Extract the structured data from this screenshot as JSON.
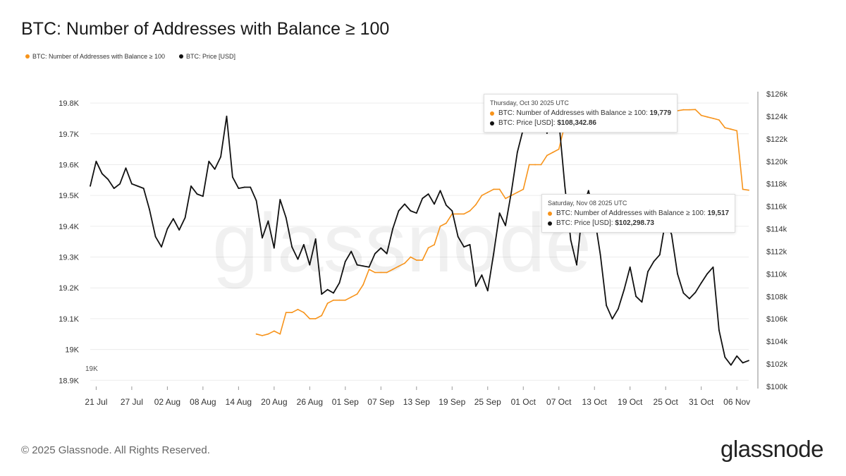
{
  "page": {
    "title": "BTC: Number of Addresses with Balance ≥ 100",
    "footer": "© 2025 Glassnode. All Rights Reserved.",
    "logo": "glassnode",
    "watermark": "glassnode"
  },
  "colors": {
    "addresses": "#f7931a",
    "price": "#111111",
    "grid": "#ececec"
  },
  "legend": [
    {
      "label": "BTC: Number of Addresses with Balance ≥ 100",
      "color": "#f7931a"
    },
    {
      "label": "BTC: Price [USD]",
      "color": "#111111"
    }
  ],
  "tooltips": [
    {
      "date": "Thursday, Oct 30 2025 UTC",
      "row1_label": "BTC: Number of Addresses with Balance ≥ 100: ",
      "row1_value": "19,779",
      "row2_label": "BTC: Price [USD]: ",
      "row2_value": "$108,342.86"
    },
    {
      "date": "Saturday, Nov 08 2025 UTC",
      "row1_label": "BTC: Number of Addresses with Balance ≥ 100: ",
      "row1_value": "19,517",
      "row2_label": "BTC: Price [USD]: ",
      "row2_value": "$102,298.73"
    }
  ],
  "chart_data": {
    "type": "line",
    "x_tick_labels": [
      "21 Jul",
      "27 Jul",
      "02 Aug",
      "08 Aug",
      "14 Aug",
      "20 Aug",
      "26 Aug",
      "01 Sep",
      "07 Sep",
      "13 Sep",
      "19 Sep",
      "25 Sep",
      "01 Oct",
      "07 Oct",
      "13 Oct",
      "19 Oct",
      "25 Oct",
      "31 Oct",
      "06 Nov"
    ],
    "x_range": [
      "2025-07-20",
      "2025-11-08"
    ],
    "y_left": {
      "ticks": [
        "18.9K",
        "19K",
        "19.1K",
        "19.2K",
        "19.3K",
        "19.4K",
        "19.5K",
        "19.6K",
        "19.7K",
        "19.8K"
      ],
      "range": [
        18.88,
        19.83
      ]
    },
    "y_right": {
      "ticks": [
        "$100k",
        "$102k",
        "$104k",
        "$106k",
        "$108k",
        "$110k",
        "$112k",
        "$114k",
        "$116k",
        "$118k",
        "$120k",
        "$122k",
        "$124k",
        "$126k"
      ],
      "range": [
        100000,
        126000
      ]
    },
    "stray_label": "19K",
    "series": [
      {
        "name": "BTC: Number of Addresses with Balance ≥ 100",
        "axis": "left",
        "x": [
          "2025-08-17",
          "2025-08-18",
          "2025-08-19",
          "2025-08-20",
          "2025-08-21",
          "2025-08-22",
          "2025-08-23",
          "2025-08-24",
          "2025-08-25",
          "2025-08-26",
          "2025-08-27",
          "2025-08-28",
          "2025-08-29",
          "2025-08-30",
          "2025-08-31",
          "2025-09-01",
          "2025-09-02",
          "2025-09-03",
          "2025-09-04",
          "2025-09-05",
          "2025-09-06",
          "2025-09-07",
          "2025-09-08",
          "2025-09-09",
          "2025-09-10",
          "2025-09-11",
          "2025-09-12",
          "2025-09-13",
          "2025-09-14",
          "2025-09-15",
          "2025-09-16",
          "2025-09-17",
          "2025-09-18",
          "2025-09-19",
          "2025-09-20",
          "2025-09-21",
          "2025-09-22",
          "2025-09-23",
          "2025-09-24",
          "2025-09-25",
          "2025-09-26",
          "2025-09-27",
          "2025-09-28",
          "2025-09-29",
          "2025-09-30",
          "2025-10-01",
          "2025-10-02",
          "2025-10-03",
          "2025-10-04",
          "2025-10-05",
          "2025-10-06",
          "2025-10-07",
          "2025-10-08",
          "2025-10-09",
          "2025-10-10",
          "2025-10-11",
          "2025-10-12",
          "2025-10-13",
          "2025-10-14",
          "2025-10-15",
          "2025-10-16",
          "2025-10-17",
          "2025-10-18",
          "2025-10-19",
          "2025-10-20",
          "2025-10-21",
          "2025-10-22",
          "2025-10-23",
          "2025-10-24",
          "2025-10-25",
          "2025-10-26",
          "2025-10-27",
          "2025-10-28",
          "2025-10-29",
          "2025-10-30",
          "2025-10-31",
          "2025-11-01",
          "2025-11-02",
          "2025-11-03",
          "2025-11-04",
          "2025-11-05",
          "2025-11-06",
          "2025-11-07",
          "2025-11-08"
        ],
        "values": [
          19.05,
          19.045,
          19.05,
          19.06,
          19.05,
          19.12,
          19.12,
          19.13,
          19.12,
          19.1,
          19.1,
          19.11,
          19.15,
          19.16,
          19.16,
          19.16,
          19.17,
          19.18,
          19.21,
          19.26,
          19.25,
          19.25,
          19.25,
          19.26,
          19.27,
          19.28,
          19.3,
          19.29,
          19.29,
          19.33,
          19.34,
          19.4,
          19.41,
          19.44,
          19.44,
          19.44,
          19.45,
          19.47,
          19.5,
          19.51,
          19.52,
          19.52,
          19.49,
          19.5,
          19.51,
          19.52,
          19.6,
          19.6,
          19.6,
          19.63,
          19.64,
          19.65,
          19.73,
          19.72,
          19.72,
          19.71,
          19.72,
          19.72,
          19.73,
          19.73,
          19.74,
          19.74,
          19.75,
          19.75,
          19.76,
          19.76,
          19.76,
          19.76,
          19.77,
          19.77,
          19.77,
          19.775,
          19.778,
          19.778,
          19.779,
          19.76,
          19.755,
          19.75,
          19.745,
          19.72,
          19.715,
          19.71,
          19.52,
          19.517
        ]
      },
      {
        "name": "BTC: Price [USD]",
        "axis": "right",
        "x": [
          "2025-07-20",
          "2025-07-21",
          "2025-07-22",
          "2025-07-23",
          "2025-07-24",
          "2025-07-25",
          "2025-07-26",
          "2025-07-27",
          "2025-07-28",
          "2025-07-29",
          "2025-07-30",
          "2025-07-31",
          "2025-08-01",
          "2025-08-02",
          "2025-08-03",
          "2025-08-04",
          "2025-08-05",
          "2025-08-06",
          "2025-08-07",
          "2025-08-08",
          "2025-08-09",
          "2025-08-10",
          "2025-08-11",
          "2025-08-12",
          "2025-08-13",
          "2025-08-14",
          "2025-08-15",
          "2025-08-16",
          "2025-08-17",
          "2025-08-18",
          "2025-08-19",
          "2025-08-20",
          "2025-08-21",
          "2025-08-22",
          "2025-08-23",
          "2025-08-24",
          "2025-08-25",
          "2025-08-26",
          "2025-08-27",
          "2025-08-28",
          "2025-08-29",
          "2025-08-30",
          "2025-08-31",
          "2025-09-01",
          "2025-09-02",
          "2025-09-03",
          "2025-09-04",
          "2025-09-05",
          "2025-09-06",
          "2025-09-07",
          "2025-09-08",
          "2025-09-09",
          "2025-09-10",
          "2025-09-11",
          "2025-09-12",
          "2025-09-13",
          "2025-09-14",
          "2025-09-15",
          "2025-09-16",
          "2025-09-17",
          "2025-09-18",
          "2025-09-19",
          "2025-09-20",
          "2025-09-21",
          "2025-09-22",
          "2025-09-23",
          "2025-09-24",
          "2025-09-25",
          "2025-09-26",
          "2025-09-27",
          "2025-09-28",
          "2025-09-29",
          "2025-09-30",
          "2025-10-01",
          "2025-10-02",
          "2025-10-03",
          "2025-10-04",
          "2025-10-05",
          "2025-10-06",
          "2025-10-07",
          "2025-10-08",
          "2025-10-09",
          "2025-10-10",
          "2025-10-11",
          "2025-10-12",
          "2025-10-13",
          "2025-10-14",
          "2025-10-15",
          "2025-10-16",
          "2025-10-17",
          "2025-10-18",
          "2025-10-19",
          "2025-10-20",
          "2025-10-21",
          "2025-10-22",
          "2025-10-23",
          "2025-10-24",
          "2025-10-25",
          "2025-10-26",
          "2025-10-27",
          "2025-10-28",
          "2025-10-29",
          "2025-10-30",
          "2025-10-31",
          "2025-11-01",
          "2025-11-02",
          "2025-11-03",
          "2025-11-04",
          "2025-11-05",
          "2025-11-06",
          "2025-11-07",
          "2025-11-08"
        ],
        "values": [
          117800,
          120000,
          118900,
          118400,
          117600,
          118000,
          119400,
          118000,
          117800,
          117600,
          115700,
          113300,
          112400,
          114000,
          114900,
          113900,
          115000,
          117800,
          117100,
          116900,
          120000,
          119300,
          120400,
          124000,
          118600,
          117600,
          117700,
          117700,
          116500,
          113200,
          114700,
          112300,
          116600,
          115000,
          112400,
          111300,
          112600,
          110800,
          113100,
          108200,
          108600,
          108300,
          109200,
          111100,
          112000,
          110800,
          110700,
          110600,
          111800,
          112300,
          111800,
          114000,
          115600,
          116200,
          115600,
          115400,
          116700,
          117100,
          116200,
          117400,
          116100,
          115600,
          113300,
          112400,
          112600,
          108900,
          109900,
          108500,
          111800,
          115400,
          114300,
          117300,
          120800,
          122900,
          123000,
          125500,
          124000,
          122500,
          124800,
          123600,
          117800,
          113000,
          110800,
          115800,
          117400,
          115100,
          111700,
          107200,
          106000,
          106900,
          108600,
          110600,
          108000,
          107500,
          110200,
          111100,
          111700,
          114800,
          113500,
          110000,
          108300,
          107800,
          108342,
          109200,
          110000,
          110600,
          105000,
          102600,
          101900,
          102700,
          102100,
          102300
        ]
      }
    ]
  }
}
